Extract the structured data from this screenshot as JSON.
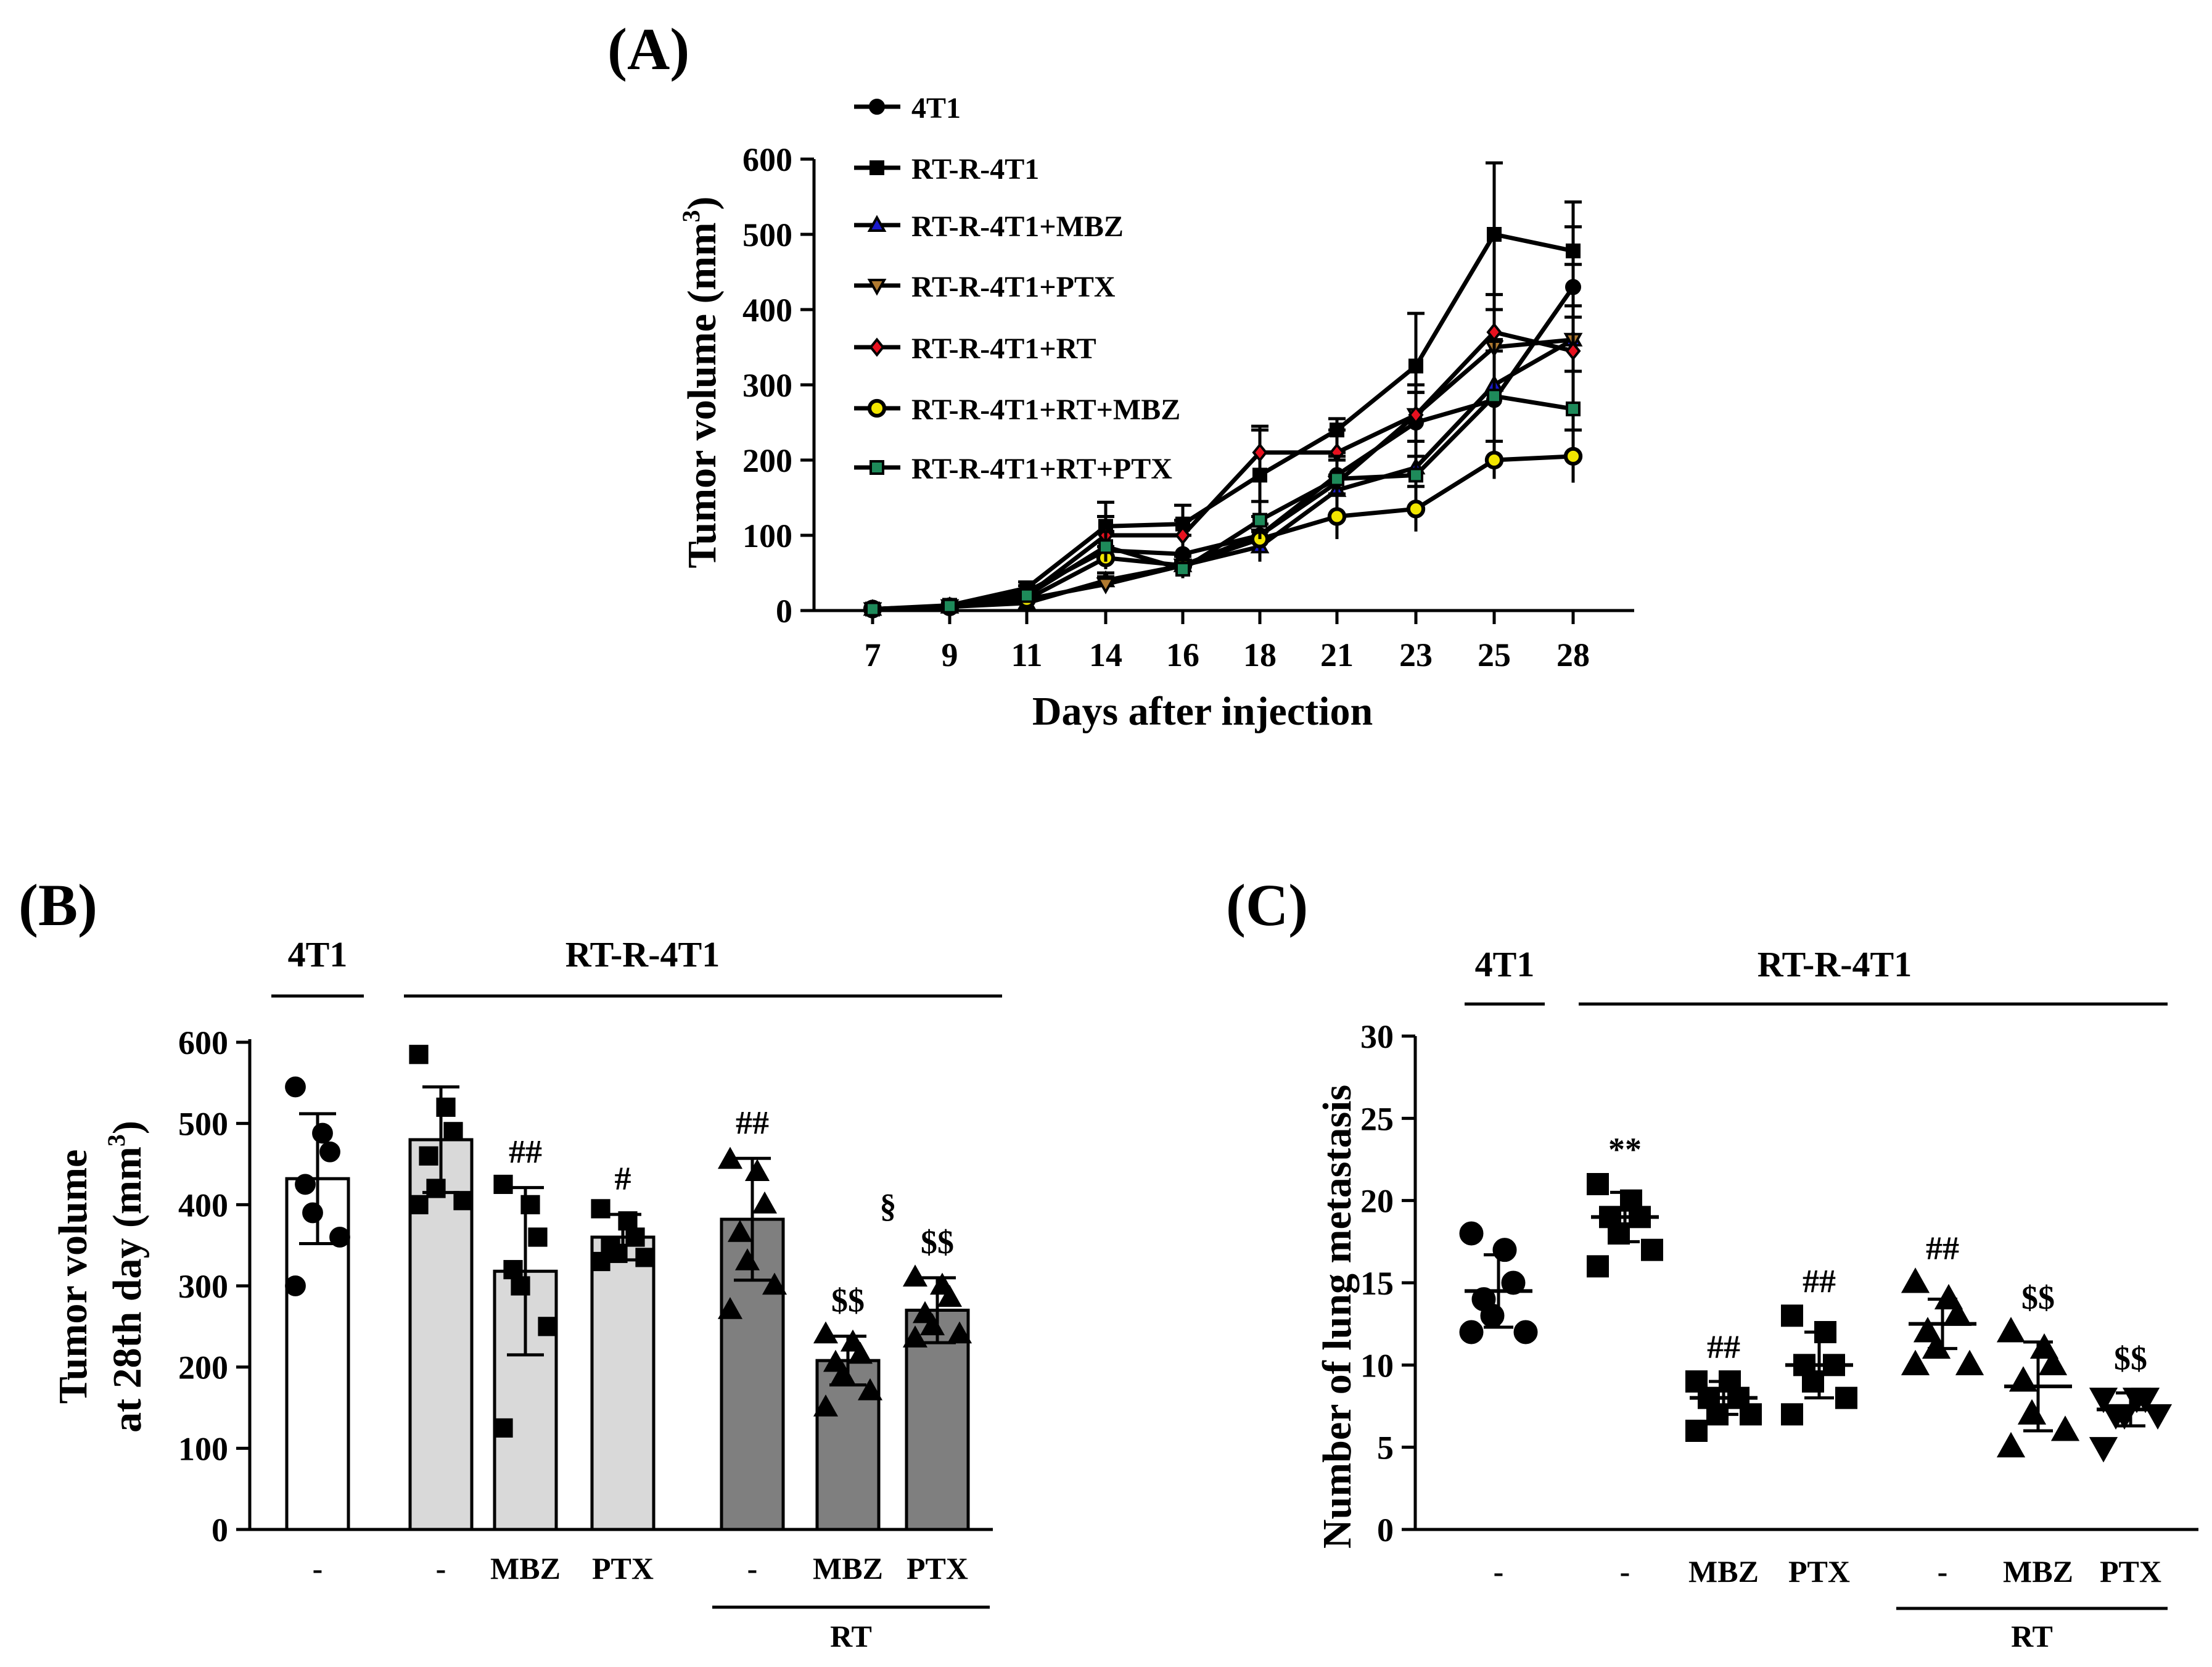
{
  "chart_data": [
    {
      "panel": "(A)",
      "type": "line",
      "title": "",
      "xlabel": "Days after injection",
      "ylabel": "Tumor volume (mm",
      "ylabel_sup": "3",
      "ylabel_suffix": ")",
      "x": [
        7,
        9,
        11,
        14,
        16,
        18,
        21,
        23,
        25,
        28
      ],
      "ylim": [
        0,
        600
      ],
      "yticks": [
        0,
        100,
        200,
        300,
        400,
        500,
        600
      ],
      "grid": false,
      "legend_position": "top-left",
      "series": [
        {
          "name": "4T1",
          "color": "#000000",
          "marker": "circle",
          "values": [
            2,
            6,
            25,
            80,
            75,
            100,
            180,
            250,
            280,
            430
          ],
          "errors": [
            2,
            3,
            8,
            25,
            25,
            25,
            30,
            40,
            80,
            80
          ]
        },
        {
          "name": "RT-R-4T1",
          "color": "#000000",
          "marker": "square",
          "values": [
            2,
            7,
            30,
            112,
            115,
            180,
            240,
            325,
            500,
            478
          ],
          "errors": [
            2,
            3,
            8,
            32,
            25,
            65,
            15,
            70,
            95,
            65
          ]
        },
        {
          "name": "RT-R-4T1+MBZ",
          "color": "#1a1acc",
          "marker": "triangle-up",
          "values": [
            2,
            5,
            10,
            40,
            60,
            85,
            160,
            190,
            300,
            360
          ],
          "errors": [
            2,
            3,
            5,
            10,
            15,
            20,
            20,
            35,
            60,
            100
          ]
        },
        {
          "name": "RT-R-4T1+PTX",
          "color": "#b07a30",
          "marker": "triangle-down",
          "values": [
            2,
            6,
            15,
            35,
            60,
            100,
            170,
            260,
            350,
            360
          ],
          "errors": [
            2,
            3,
            6,
            10,
            15,
            25,
            30,
            40,
            50,
            30
          ]
        },
        {
          "name": "RT-R-4T1+RT",
          "color": "#e8111f",
          "marker": "diamond",
          "values": [
            2,
            6,
            20,
            100,
            100,
            210,
            210,
            260,
            370,
            345
          ],
          "errors": [
            2,
            3,
            6,
            25,
            20,
            30,
            30,
            30,
            50,
            60
          ]
        },
        {
          "name": "RT-R-4T1+RT+MBZ",
          "color": "#f2e600",
          "marker": "circle-open",
          "values": [
            2,
            5,
            15,
            70,
            60,
            95,
            125,
            135,
            200,
            205
          ],
          "errors": [
            2,
            3,
            5,
            15,
            12,
            20,
            30,
            30,
            25,
            35
          ]
        },
        {
          "name": "RT-R-4T1+RT+PTX",
          "color": "#1e8a5a",
          "marker": "square",
          "values": [
            2,
            6,
            20,
            85,
            55,
            120,
            175,
            180,
            285,
            268
          ],
          "errors": [
            2,
            3,
            6,
            20,
            12,
            25,
            30,
            25,
            60,
            50
          ]
        }
      ]
    },
    {
      "panel": "(B)",
      "type": "bar",
      "ylabel_line1": "Tumor volume",
      "ylabel_line2": "at 28th day (mm",
      "ylabel_sup": "3",
      "ylabel_suffix": ")",
      "ylim": [
        0,
        600
      ],
      "yticks": [
        0,
        100,
        200,
        300,
        400,
        500,
        600
      ],
      "categories": [
        "-",
        "-",
        "MBZ",
        "PTX",
        "-",
        "MBZ",
        "PTX"
      ],
      "values": [
        432,
        480,
        318,
        360,
        382,
        208,
        270
      ],
      "errors": [
        80,
        65,
        103,
        28,
        75,
        30,
        40
      ],
      "fills": [
        "#ffffff",
        "#d9d9d9",
        "#d9d9d9",
        "#d9d9d9",
        "#7f7f7f",
        "#7f7f7f",
        "#7f7f7f"
      ],
      "markers": [
        "circle",
        "square",
        "square",
        "square",
        "triangle-up",
        "triangle-up",
        "triangle-up"
      ],
      "significance": [
        "",
        "",
        "##",
        "#",
        "##",
        "$$",
        "$$"
      ],
      "extra_annotation": {
        "text": "§",
        "value": 400,
        "category_index": 5
      },
      "points": [
        [
          545,
          488,
          465,
          425,
          390,
          360,
          300
        ],
        [
          585,
          520,
          490,
          460,
          420,
          405,
          400
        ],
        [
          425,
          400,
          360,
          320,
          300,
          250,
          125
        ],
        [
          395,
          380,
          360,
          350,
          340,
          335,
          330
        ],
        [
          455,
          440,
          400,
          365,
          330,
          300,
          270
        ],
        [
          240,
          230,
          215,
          205,
          190,
          170,
          150
        ],
        [
          310,
          300,
          285,
          265,
          250,
          240,
          235
        ]
      ],
      "groups": {
        "left": "4T1",
        "right": "RT-R-4T1",
        "sub": "RT"
      }
    },
    {
      "panel": "(C)",
      "type": "scatter",
      "ylabel": "Number of lung metastasis",
      "ylim": [
        0,
        30
      ],
      "yticks": [
        0,
        5,
        10,
        15,
        20,
        25,
        30
      ],
      "categories": [
        "-",
        "-",
        "MBZ",
        "PTX",
        "-",
        "MBZ",
        "PTX"
      ],
      "means": [
        14.5,
        19,
        8,
        10,
        12.5,
        8.7,
        7.3
      ],
      "sds": [
        2.2,
        1.5,
        1,
        2,
        1.5,
        2.7,
        1
      ],
      "markers": [
        "circle",
        "square",
        "square",
        "square",
        "triangle-up",
        "triangle-up",
        "triangle-down"
      ],
      "significance": [
        "",
        "**",
        "##",
        "##",
        "##",
        "$$",
        "$$"
      ],
      "points": [
        [
          18,
          17,
          15,
          14,
          13,
          12,
          12
        ],
        [
          21,
          20,
          19,
          19,
          18,
          17,
          16
        ],
        [
          9,
          9,
          8,
          8,
          7,
          7,
          6
        ],
        [
          13,
          12,
          10,
          10,
          9,
          8,
          7
        ],
        [
          15,
          14,
          13,
          12,
          11,
          10,
          10
        ],
        [
          12,
          11,
          10,
          9,
          7,
          6,
          5
        ],
        [
          8,
          8,
          8,
          7,
          7,
          7,
          5
        ]
      ],
      "groups": {
        "left": "4T1",
        "right": "RT-R-4T1",
        "sub": "RT"
      }
    }
  ]
}
